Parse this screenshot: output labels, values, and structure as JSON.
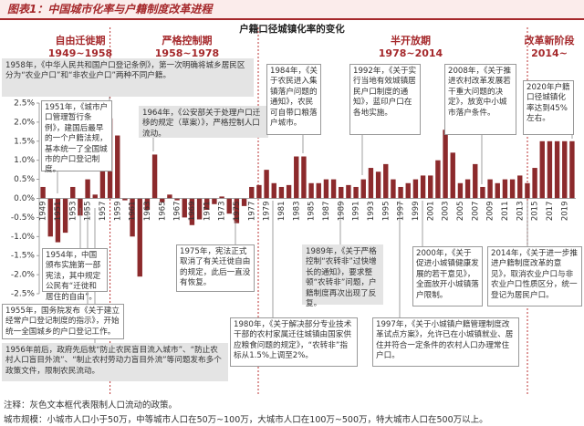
{
  "chart_data": {
    "type": "bar",
    "title": "图表1：中国城市化率与户籍制度改革进程",
    "subtitle": "户籍口径城镇化率的变化",
    "color": "#8c2a2c",
    "categories": [
      "1949",
      null,
      "1951",
      null,
      "1953",
      null,
      "1955",
      null,
      "1957",
      null,
      "1959",
      null,
      "1961",
      null,
      "1963",
      null,
      "1965",
      null,
      "1967",
      null,
      "1969",
      null,
      "1971",
      null,
      "1973",
      null,
      "1975",
      null,
      "1977",
      null,
      "1979",
      null,
      "1981",
      null,
      "1983",
      null,
      "1985",
      null,
      "1987",
      null,
      "1989",
      null,
      "1991",
      null,
      "1993",
      null,
      "1995",
      null,
      "1997",
      null,
      "1999",
      null,
      "2001",
      null,
      "2003",
      null,
      "2005",
      null,
      "2007",
      null,
      "2009",
      null,
      "2011",
      null,
      "2013",
      null,
      "2015",
      null,
      "2017",
      null,
      "2019",
      null
    ],
    "values": [
      0.3,
      -1.0,
      -1.15,
      -0.9,
      0.3,
      -0.45,
      0.5,
      0.1,
      1.0,
      2.1,
      1.65,
      -0.05,
      -1.0,
      -2.05,
      -0.3,
      1.15,
      -0.1,
      0.1,
      -0.05,
      -0.5,
      -0.7,
      -0.55,
      -0.3,
      -0.15,
      0.05,
      -0.4,
      -0.65,
      -0.2,
      0.3,
      0.35,
      0.75,
      0.4,
      0.3,
      0.35,
      1.1,
      1.1,
      0.4,
      0.4,
      0.5,
      0.5,
      0.3,
      0.35,
      0.3,
      0.5,
      0.8,
      0.7,
      0.9,
      0.5,
      0.3,
      0.4,
      0.5,
      0.6,
      0.6,
      1.0,
      1.8,
      1.2,
      0.4,
      0.5,
      0.9,
      0.3,
      0.5,
      0.4,
      0.5,
      0.5,
      0.6,
      0.4,
      0.8,
      1.5,
      1.5,
      1.5,
      1.5,
      1.5
    ],
    "ylim": [
      -2.5,
      2.5
    ],
    "yticks": [
      {
        "value": -2.5,
        "label": "-2.5%"
      },
      {
        "value": -2.0,
        "label": "-2.0%"
      },
      {
        "value": -1.5,
        "label": "-1.5%"
      },
      {
        "value": -1.0,
        "label": "-1.0%"
      },
      {
        "value": -0.5,
        "label": "-0.5%"
      },
      {
        "value": 0,
        "label": "0.0%"
      },
      {
        "value": 0.5,
        "label": "0.5%"
      },
      {
        "value": 1.0,
        "label": "1.0%"
      },
      {
        "value": 1.5,
        "label": "1.5%"
      },
      {
        "value": 2.0,
        "label": "2.0%"
      },
      {
        "value": 2.5,
        "label": "2.5%"
      }
    ],
    "grid": false,
    "periods": [
      {
        "name": "自由迁徙期",
        "range": "1949~1958"
      },
      {
        "name": "严格控制期",
        "range": "1958~1978"
      },
      {
        "name": "半开放期",
        "range": "1978~2014"
      },
      {
        "name": "改革新阶段",
        "range": "2014~"
      }
    ],
    "annotations": [
      "1958年，《中华人民共和国户口登记条例》，第一次明确将城乡居民区分为“农业户口”和“非农业户口”两种不同户籍。",
      "1951年，《城市户口管理暂行条例》，建国后最早的一个户籍法规，基本统一了全国城市的户口登记制度。",
      "1964年，《公安部关于处理户口迁移的规定（草案）》，严格控制人口流动。",
      "1984年，《关于农民进入集镇落户问题的通知》，农民可自带口粮落户城市。",
      "1992年，《关于实行当地有效城镇居民户口制度的通知》，蓝印户口在各地实施。",
      "2008年，《关于推进农村改革发展若干重大问题的决定》，放宽中小城市落户条件。",
      "2020年户籍口径城镇化率达到45%左右。",
      "1954年，中国颁布实施第一部宪法，其中规定公民有“迁徙和居住的自由”。",
      "1955年，国务院发布《关于建立经常户口登记制度的指示》，开始统一全国城乡的户口登记工作。",
      "1956年前后，政府先后就“防止农民盲目流入城市”、“防止农村人口盲目外流”、“制止农村劳动力盲目外流”等问题发布多个政策文件，限制农民流动。",
      "1975年，宪法正式取消了有关迁徙自由的规定，此后一直没有恢复。",
      "1980年，《关于解决部分专业技术干部的农村家属迁往城镇由国家供应粮食问题的规定》，“农转非”指标从1.5%上调至2%。",
      "1989年，《关于严格控制“农转非”过快增长的通知》，要求整顿“农转非”问题，户籍制度再次出现了反复。",
      "2000年，《关于促进小城镇健康发展的若干意见》，全面放开小城镇落户限制。",
      "1997年，《关于小城镇户籍管理制度改革试点方案》，允许已在小城镇就业、居住并符合一定条件的农村人口办理常住户口。",
      "2014年，《关于进一步推进户籍制度改革的意见》，取消农业户口与非农业户口性质区分，统一登记为居民户口。"
    ],
    "notes": [
      "注释：灰色文本框代表限制人口流动的政策。",
      "城市规模：小城市人口小于50万，中等城市人口在50万~100万，大城市人口在100万~500万，特大城市人口在500万以上。"
    ]
  }
}
